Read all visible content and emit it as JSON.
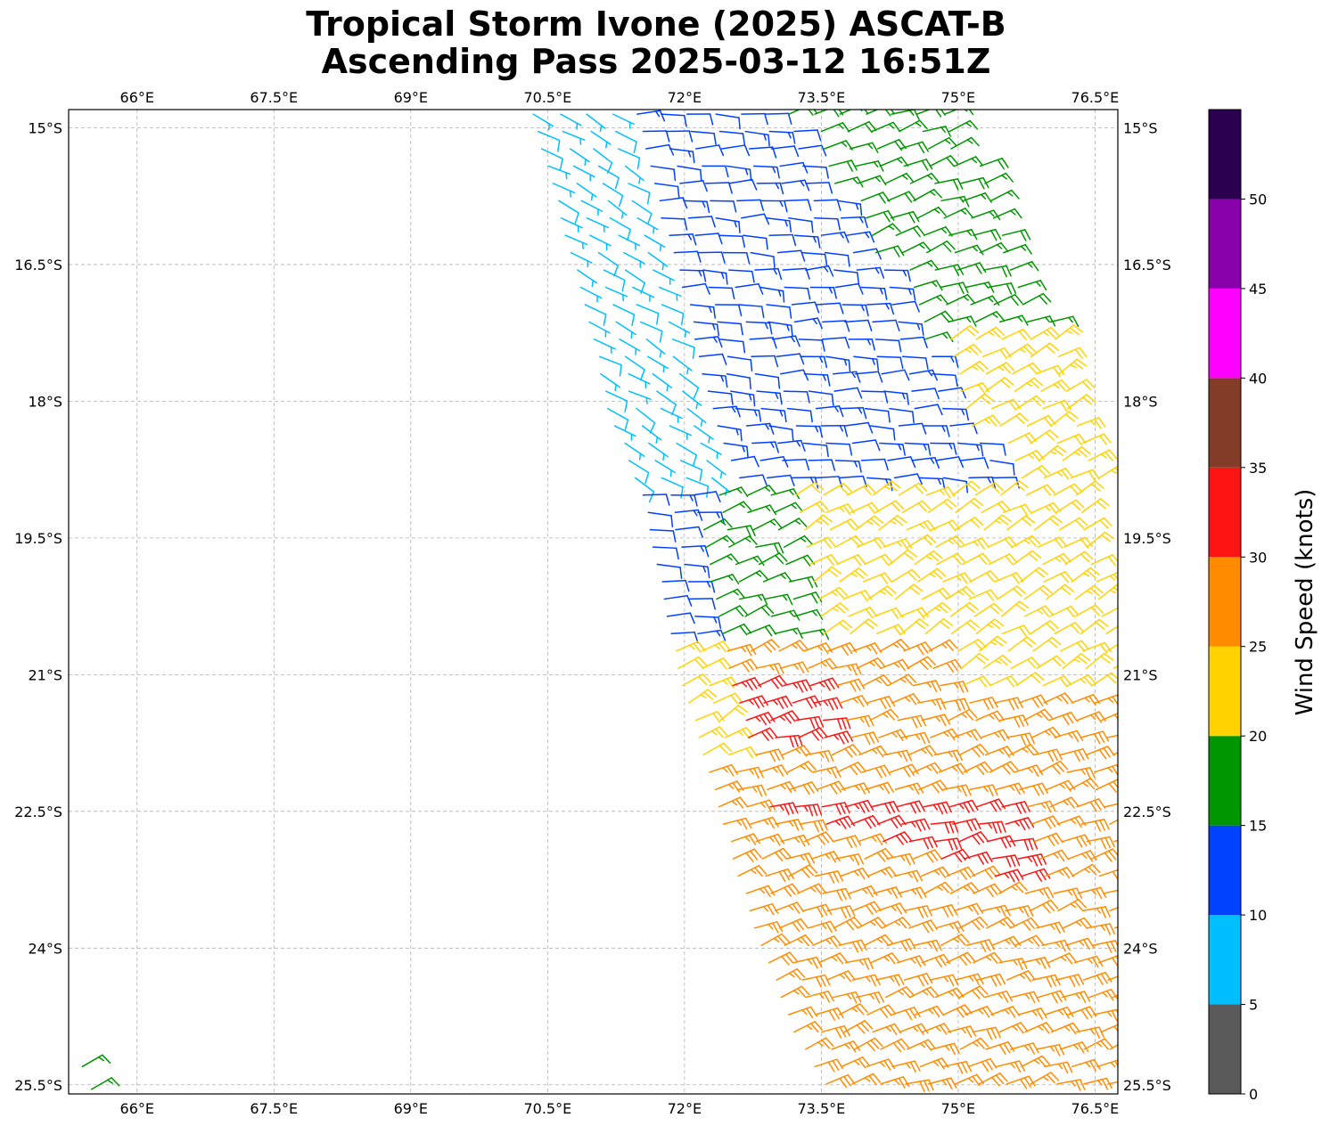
{
  "title": {
    "line1": "Tropical Storm Ivone (2025) ASCAT-B",
    "line2": "Ascending Pass 2025-03-12 16:51Z"
  },
  "map": {
    "lon_range": [
      65.25,
      76.75
    ],
    "lat_range": [
      -25.6,
      -14.8
    ],
    "lon_ticks": [
      66,
      67.5,
      69,
      70.5,
      72,
      73.5,
      75,
      76.5
    ],
    "lon_tick_labels": [
      "66°E",
      "67.5°E",
      "69°E",
      "70.5°E",
      "72°E",
      "73.5°E",
      "75°E",
      "76.5°E"
    ],
    "lat_ticks": [
      -15,
      -16.5,
      -18,
      -19.5,
      -21,
      -22.5,
      -24,
      -25.5
    ],
    "lat_tick_labels": [
      "15°S",
      "16.5°S",
      "18°S",
      "19.5°S",
      "21°S",
      "22.5°S",
      "24°S",
      "25.5°S"
    ],
    "grid": true,
    "gridline_color": "#b0b0b0"
  },
  "colorbar": {
    "label": "Wind Speed (knots)",
    "bounds": [
      0,
      5,
      10,
      15,
      20,
      25,
      30,
      35,
      40,
      45,
      50,
      55
    ],
    "colors": [
      "#595959",
      "#00bfff",
      "#0040ff",
      "#009600",
      "#ffd200",
      "#ff8c00",
      "#ff1414",
      "#823c28",
      "#ff00ff",
      "#8800aa",
      "#2b0050"
    ],
    "tick_values": [
      0,
      5,
      10,
      15,
      20,
      25,
      30,
      35,
      40,
      45,
      50
    ],
    "tick_labels": [
      "0",
      "5",
      "10",
      "15",
      "20",
      "25",
      "30",
      "35",
      "40",
      "45",
      "50"
    ]
  },
  "chart_data": {
    "type": "wind-barb-map",
    "units": "knots",
    "swath": {
      "description_fields": "lat (deg N, negative = S), left/right edge longitude (deg E)",
      "edges": [
        [
          -14.8,
          70.3,
          75.0
        ],
        [
          -16.0,
          70.6,
          75.6
        ],
        [
          -17.0,
          70.9,
          76.0
        ],
        [
          -18.0,
          71.1,
          76.3
        ],
        [
          -19.0,
          71.5,
          76.6
        ],
        [
          -20.0,
          71.7,
          76.75
        ],
        [
          -21.0,
          71.9,
          76.75
        ],
        [
          -22.0,
          72.2,
          76.75
        ],
        [
          -23.0,
          72.5,
          76.75
        ],
        [
          -24.0,
          72.8,
          76.75
        ],
        [
          -25.0,
          73.2,
          76.75
        ],
        [
          -25.6,
          73.6,
          76.75
        ]
      ]
    },
    "wind_regimes": [
      {
        "region": "north-west",
        "speed_kt": 7,
        "direction_from_deg": 120
      },
      {
        "region": "north-central",
        "speed_kt": 12,
        "direction_from_deg": 90
      },
      {
        "region": "north-east",
        "speed_kt": 17,
        "direction_from_deg": 70
      },
      {
        "region": "central-east",
        "speed_kt": 22,
        "direction_from_deg": 60
      },
      {
        "region": "south",
        "speed_kt": 27,
        "direction_from_deg": 70
      },
      {
        "region": "core-band",
        "speed_kt": 32,
        "direction_from_deg": 75
      }
    ],
    "isolated_barbs": [
      {
        "lon": 65.4,
        "lat": -25.3,
        "speed_kt": 17,
        "direction_from_deg": 60
      },
      {
        "lon": 65.5,
        "lat": -25.55,
        "speed_kt": 17,
        "direction_from_deg": 60
      }
    ]
  }
}
